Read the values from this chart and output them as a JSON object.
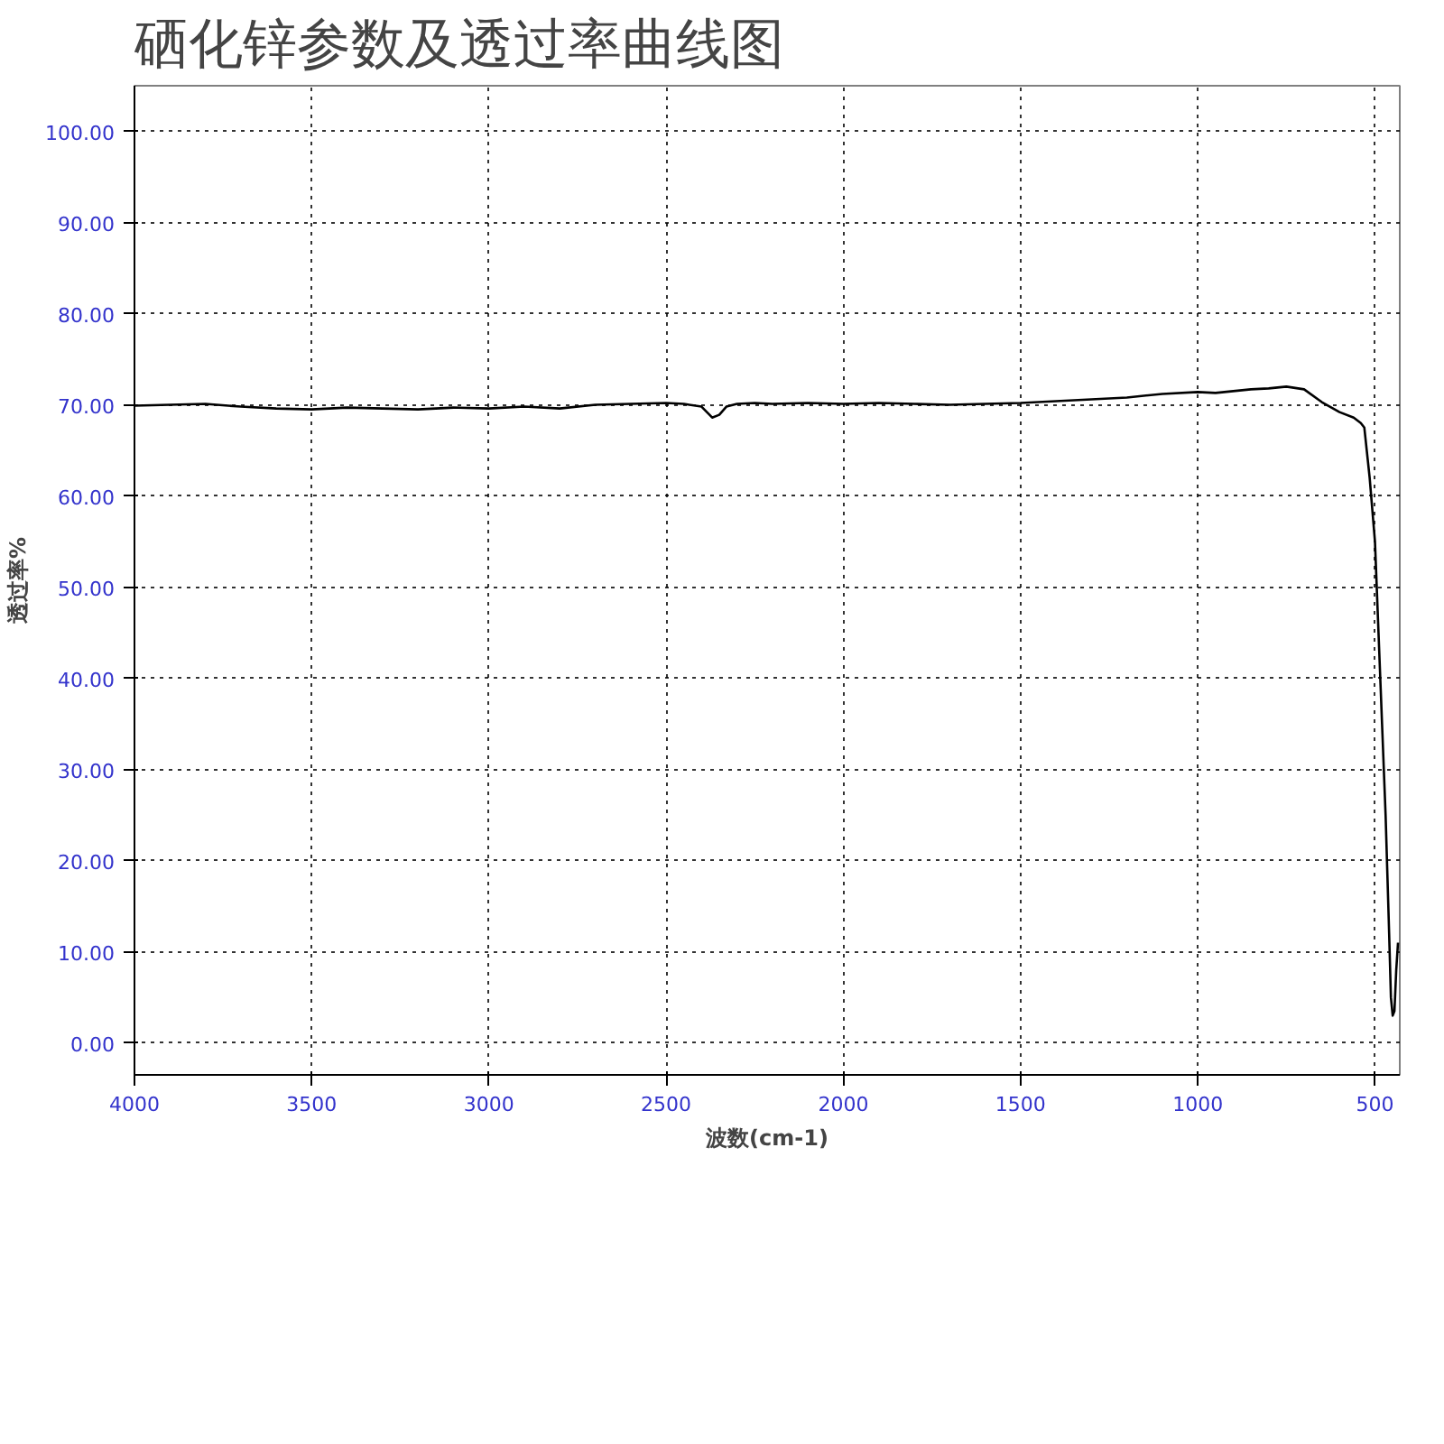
{
  "chart_data": {
    "type": "line",
    "title": "硒化锌参数及透过率曲线图",
    "xlabel": "波数(cm-1)",
    "ylabel": "透过率%",
    "x": [
      4000,
      3900,
      3800,
      3700,
      3600,
      3500,
      3400,
      3300,
      3200,
      3100,
      3000,
      2900,
      2800,
      2700,
      2600,
      2500,
      2450,
      2400,
      2370,
      2350,
      2330,
      2300,
      2250,
      2200,
      2100,
      2000,
      1900,
      1800,
      1700,
      1600,
      1500,
      1400,
      1300,
      1200,
      1100,
      1000,
      950,
      900,
      850,
      800,
      750,
      700,
      650,
      600,
      560,
      540,
      530,
      515,
      500,
      490,
      480,
      470,
      460,
      455,
      450,
      445,
      440,
      435
    ],
    "series": [
      {
        "color": "#000000",
        "values": [
          69.9,
          70.0,
          70.1,
          69.8,
          69.6,
          69.5,
          69.7,
          69.6,
          69.5,
          69.7,
          69.6,
          69.8,
          69.6,
          70.0,
          70.1,
          70.2,
          70.1,
          69.8,
          68.6,
          68.9,
          69.8,
          70.1,
          70.2,
          70.1,
          70.2,
          70.1,
          70.2,
          70.1,
          70.0,
          70.1,
          70.2,
          70.4,
          70.6,
          70.8,
          71.2,
          71.4,
          71.3,
          71.5,
          71.7,
          71.8,
          72.0,
          71.7,
          70.3,
          69.2,
          68.6,
          68.0,
          67.5,
          62.0,
          55.0,
          45.0,
          35.0,
          25.0,
          12.0,
          5.0,
          3.0,
          3.5,
          8.0,
          11.0
        ]
      }
    ],
    "xlim": [
      4000,
      430
    ],
    "ylim": [
      -3.5,
      105
    ],
    "xticks": [
      4000,
      3500,
      3000,
      2500,
      2000,
      1500,
      1000,
      500
    ],
    "yticks": [
      {
        "value": 0,
        "label": "0.00"
      },
      {
        "value": 10,
        "label": "10.00"
      },
      {
        "value": 20,
        "label": "20.00"
      },
      {
        "value": 30,
        "label": "30.00"
      },
      {
        "value": 40,
        "label": "40.00"
      },
      {
        "value": 50,
        "label": "50.00"
      },
      {
        "value": 60,
        "label": "60.00"
      },
      {
        "value": 70,
        "label": "70.00"
      },
      {
        "value": 80,
        "label": "80.00"
      },
      {
        "value": 90,
        "label": "90.00"
      },
      {
        "value": 100,
        "label": "100.00"
      }
    ],
    "grid": true,
    "line_style": "solid"
  }
}
